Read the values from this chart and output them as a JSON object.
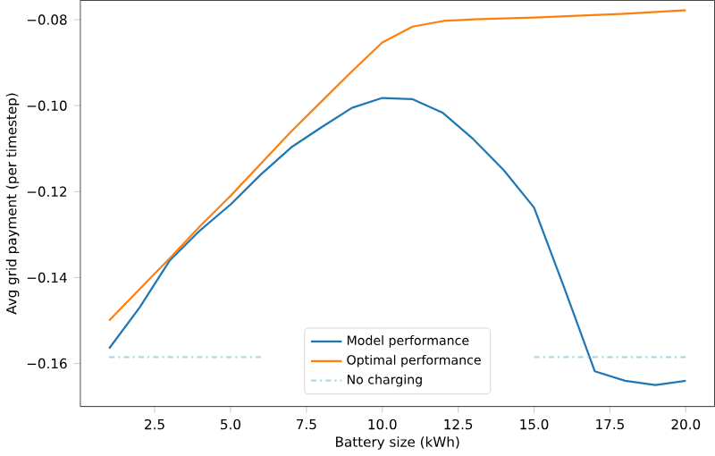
{
  "chart_data": {
    "type": "line",
    "xlabel": "Battery size (kWh)",
    "ylabel": "Avg grid payment (per timestep)",
    "x": [
      1,
      2,
      3,
      4,
      5,
      6,
      7,
      8,
      9,
      10,
      11,
      12,
      13,
      14,
      15,
      16,
      17,
      18,
      19,
      20
    ],
    "xlim": [
      0.05,
      20.95
    ],
    "xticks": [
      2.5,
      {
        "value": 5,
        "label": "5.0"
      },
      7.5,
      {
        "value": 10,
        "label": "10.0"
      },
      12.5,
      {
        "value": 15,
        "label": "15.0"
      },
      17.5,
      {
        "value": 20,
        "label": "20.0"
      }
    ],
    "ylim": [
      -0.17,
      -0.0755
    ],
    "yticks": [
      {
        "value": -0.16,
        "label": "−0.16"
      },
      {
        "value": -0.14,
        "label": "−0.14"
      },
      {
        "value": -0.12,
        "label": "−0.12"
      },
      {
        "value": -0.1,
        "label": "−0.10"
      },
      {
        "value": -0.08,
        "label": "−0.08"
      }
    ],
    "legend": "bottom",
    "grid": false,
    "series": [
      {
        "name": "Model performance",
        "color": "#1f77b4",
        "line_style": "solid",
        "values": [
          -0.1565,
          -0.147,
          -0.136,
          -0.129,
          -0.123,
          -0.116,
          -0.1097,
          -0.105,
          -0.1005,
          -0.0982,
          -0.0985,
          -0.1017,
          -0.1078,
          -0.115,
          -0.1237,
          -0.1425,
          -0.1618,
          -0.164,
          -0.165,
          -0.164
        ]
      },
      {
        "name": "Optimal performance",
        "color": "#ff7f0e",
        "line_style": "solid",
        "values": [
          -0.15,
          -0.1427,
          -0.1355,
          -0.128,
          -0.121,
          -0.1135,
          -0.106,
          -0.099,
          -0.092,
          -0.0853,
          -0.0816,
          -0.0803,
          -0.0799,
          -0.0797,
          -0.0795,
          -0.0792,
          -0.0789,
          -0.0786,
          -0.0782,
          -0.0778
        ]
      },
      {
        "name": "No charging",
        "color": "#add8e6",
        "line_style": "dashdot",
        "values": [
          -0.1585,
          -0.1585,
          -0.1585,
          -0.1585,
          -0.1585,
          -0.1585,
          null,
          null,
          null,
          null,
          null,
          null,
          null,
          null,
          -0.1585,
          -0.1585,
          -0.1585,
          -0.1585,
          -0.1585,
          -0.1585
        ]
      }
    ]
  }
}
